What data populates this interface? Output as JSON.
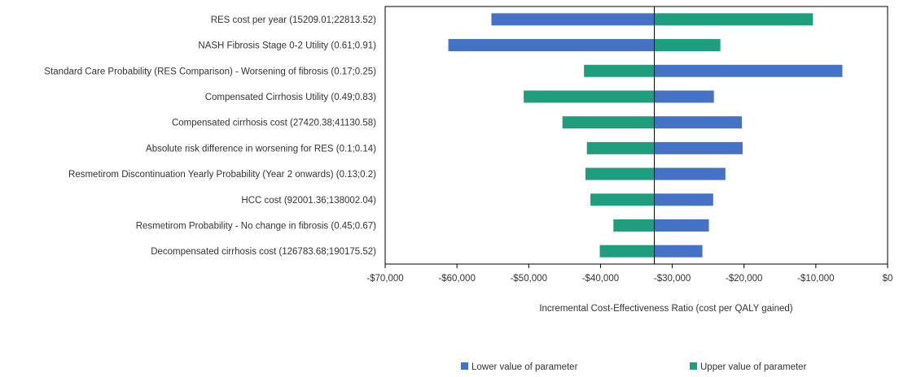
{
  "chart_data": {
    "type": "bar",
    "orientation": "horizontal",
    "subtype": "tornado",
    "xlabel": "Incremental Cost-Effectiveness Ratio (cost per QALY gained)",
    "xlim": [
      -70000,
      0
    ],
    "xticks": [
      -70000,
      -60000,
      -50000,
      -40000,
      -30000,
      -20000,
      -10000,
      0
    ],
    "xtick_labels": [
      "-$70,000",
      "-$60,000",
      "-$50,000",
      "-$40,000",
      "-$30,000",
      "-$20,000",
      "-$10,000",
      "$0"
    ],
    "base_value": -32500,
    "grid": false,
    "legend_position": "bottom",
    "categories": [
      "RES cost per year (15209.01;22813.52)",
      "NASH Fibrosis Stage 0-2 Utility (0.61;0.91)",
      "Standard Care Probability (RES Comparison) - Worsening of fibrosis (0.17;0.25)",
      "Compensated Cirrhosis Utility (0.49;0.83)",
      "Compensated cirrhosis cost (27420.38;41130.58)",
      "Absolute risk difference in worsening for RES (0.1;0.14)",
      "Resmetirom Discontinuation Yearly Probability (Year 2 onwards) (0.13;0.2)",
      "HCC cost (92001.36;138002.04)",
      "Resmetirom Probability - No change in fibrosis (0.45;0.67)",
      "Decompensated cirrhosis cost (126783.68;190175.52)"
    ],
    "series": [
      {
        "name": "Lower value of parameter",
        "color": "#4472c4",
        "values": [
          -55200,
          -61200,
          -6300,
          -24200,
          -20300,
          -20200,
          -22600,
          -24300,
          -24900,
          -25800
        ]
      },
      {
        "name": "Upper value of parameter",
        "color": "#1f9e7e",
        "values": [
          -10400,
          -23300,
          -42300,
          -50700,
          -45300,
          -41900,
          -42100,
          -41400,
          -38200,
          -40100
        ]
      }
    ]
  }
}
